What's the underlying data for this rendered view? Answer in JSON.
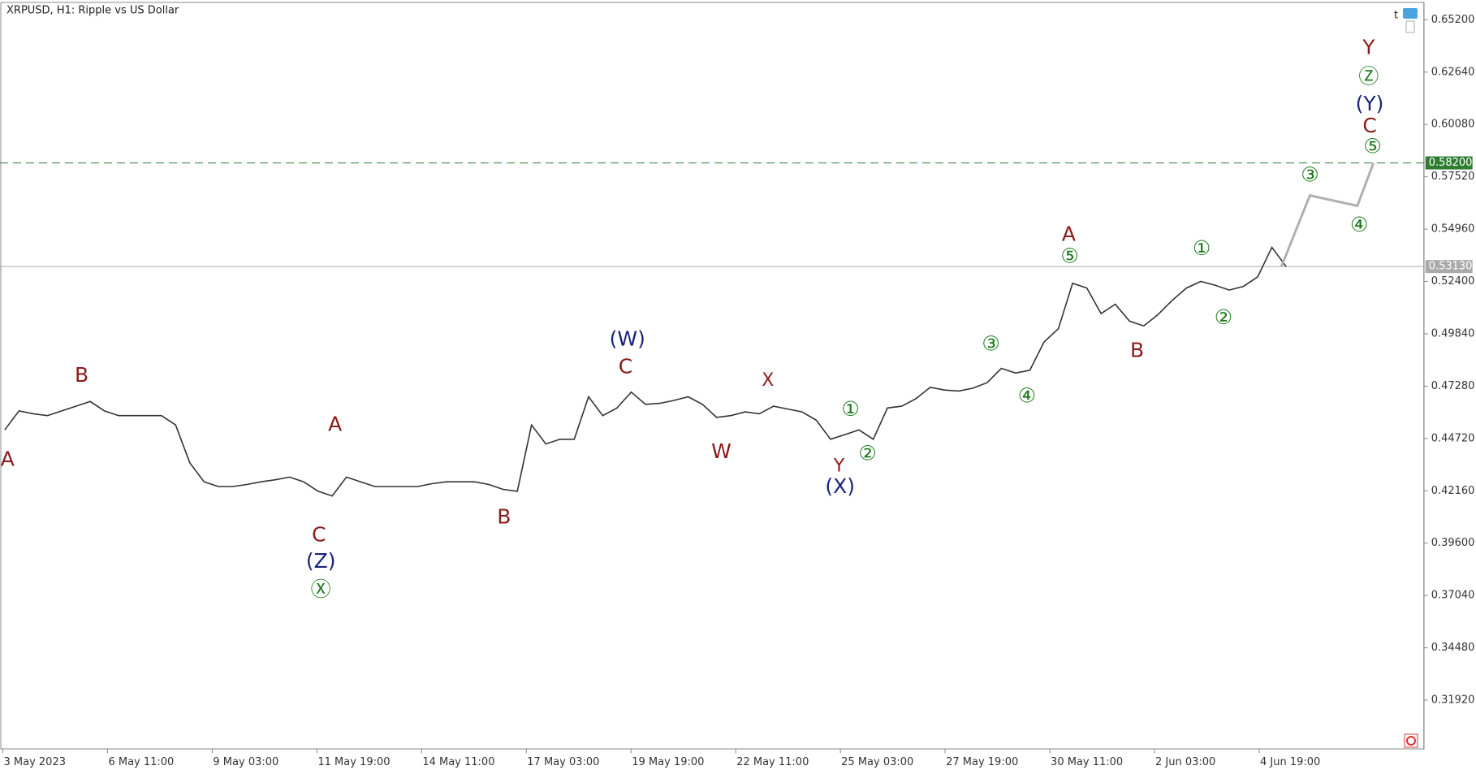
{
  "chart_data": {
    "type": "line",
    "title": "XRPUSD, H1:  Ripple vs US Dollar",
    "xtick_labels": [
      "3 May 2023",
      "6 May 11:00",
      "9 May 03:00",
      "11 May 19:00",
      "14 May 11:00",
      "17 May 03:00",
      "19 May 19:00",
      "22 May 11:00",
      "25 May 03:00",
      "27 May 19:00",
      "30 May 11:00",
      "2 Jun 03:00",
      "4 Jun 19:00"
    ],
    "series": [
      {
        "color": "#333333",
        "values": [
          0.4514,
          0.4607,
          0.4593,
          0.4584,
          0.4607,
          0.463,
          0.4653,
          0.4607,
          0.4584,
          0.4584,
          0.4584,
          0.4584,
          0.4538,
          0.4353,
          0.426,
          0.4237,
          0.4237,
          0.4247,
          0.426,
          0.427,
          0.4283,
          0.426,
          0.4214,
          0.4191,
          0.4283,
          0.426,
          0.4237,
          0.4237,
          0.4237,
          0.4237,
          0.4251,
          0.426,
          0.426,
          0.426,
          0.4247,
          0.4223,
          0.4214,
          0.4538,
          0.4445,
          0.4468,
          0.4468,
          0.4676,
          0.4584,
          0.4621,
          0.4699,
          0.4639,
          0.4644,
          0.4658,
          0.4676,
          0.4639,
          0.4575,
          0.4584,
          0.4602,
          0.4593,
          0.463,
          0.4616,
          0.4602,
          0.4561,
          0.4468,
          0.4491,
          0.4514,
          0.4468,
          0.4621,
          0.463,
          0.4667,
          0.4722,
          0.4709,
          0.4704,
          0.4718,
          0.4745,
          0.4815,
          0.4792,
          0.4806,
          0.4944,
          0.5009,
          0.5231,
          0.5208,
          0.5083,
          0.5129,
          0.5046,
          0.5023,
          0.5078,
          0.5148,
          0.5208,
          0.524,
          0.5222,
          0.5198,
          0.5216,
          0.5263,
          0.5407,
          0.5313
        ]
      }
    ],
    "projection": {
      "color": "#b0b0b0",
      "values": [
        0.5313,
        0.5661,
        0.561,
        0.582
      ]
    },
    "ylim": [
      0.2952,
      0.6603
    ],
    "yticks": [
      {
        "value": 0.652,
        "label": "0.65200"
      },
      {
        "value": 0.6264,
        "label": "0.62640"
      },
      {
        "value": 0.6008,
        "label": "0.60080"
      },
      {
        "value": 0.5752,
        "label": "0.57520"
      },
      {
        "value": 0.5496,
        "label": "0.54960"
      },
      {
        "value": 0.524,
        "label": "0.52400"
      },
      {
        "value": 0.4984,
        "label": "0.49840"
      },
      {
        "value": 0.4728,
        "label": "0.47280"
      },
      {
        "value": 0.4472,
        "label": "0.44720"
      },
      {
        "value": 0.4216,
        "label": "0.42160"
      },
      {
        "value": 0.396,
        "label": "0.39600"
      },
      {
        "value": 0.3704,
        "label": "0.37040"
      },
      {
        "value": 0.3448,
        "label": "0.34480"
      },
      {
        "value": 0.3192,
        "label": "0.31920"
      }
    ],
    "price_lines": [
      {
        "value": 0.582,
        "label": "0.58200",
        "color": "#2e7d32",
        "dashed": true
      },
      {
        "value": 0.5313,
        "label": "0.53130",
        "color": "#aaaaaa",
        "dashed": false
      }
    ],
    "annotations": [
      {
        "text": "A",
        "color": "#8b1a1a"
      },
      {
        "text": "B",
        "color": "#8b1a1a"
      },
      {
        "text": "A",
        "color": "#8b1a1a"
      },
      {
        "text": "C",
        "color": "#8b1a1a"
      },
      {
        "text": "(Z)",
        "color": "#1a237e"
      },
      {
        "text": "Ⓧ",
        "color": "#1b7a1b"
      },
      {
        "text": "B",
        "color": "#8b1a1a"
      },
      {
        "text": "C",
        "color": "#8b1a1a"
      },
      {
        "text": "(W)",
        "color": "#1a237e"
      },
      {
        "text": "W",
        "color": "#8b1a1a"
      },
      {
        "text": "X",
        "color": "#8b1a1a"
      },
      {
        "text": "①",
        "color": "#1b7a1b"
      },
      {
        "text": "②",
        "color": "#1b7a1b"
      },
      {
        "text": "Y",
        "color": "#8b1a1a"
      },
      {
        "text": "(X)",
        "color": "#1a237e"
      },
      {
        "text": "③",
        "color": "#1b7a1b"
      },
      {
        "text": "④",
        "color": "#1b7a1b"
      },
      {
        "text": "⑤",
        "color": "#1b7a1b"
      },
      {
        "text": "A",
        "color": "#8b1a1a"
      },
      {
        "text": "B",
        "color": "#8b1a1a"
      },
      {
        "text": "①",
        "color": "#1b7a1b"
      },
      {
        "text": "②",
        "color": "#1b7a1b"
      },
      {
        "text": "③",
        "color": "#1b7a1b"
      },
      {
        "text": "④",
        "color": "#1b7a1b"
      },
      {
        "text": "⑤",
        "color": "#1b7a1b"
      },
      {
        "text": "C",
        "color": "#8b1a1a"
      },
      {
        "text": "(Y)",
        "color": "#1a237e"
      },
      {
        "text": "Ⓩ",
        "color": "#1b7a1b"
      },
      {
        "text": "Y",
        "color": "#8b1a1a"
      }
    ]
  }
}
